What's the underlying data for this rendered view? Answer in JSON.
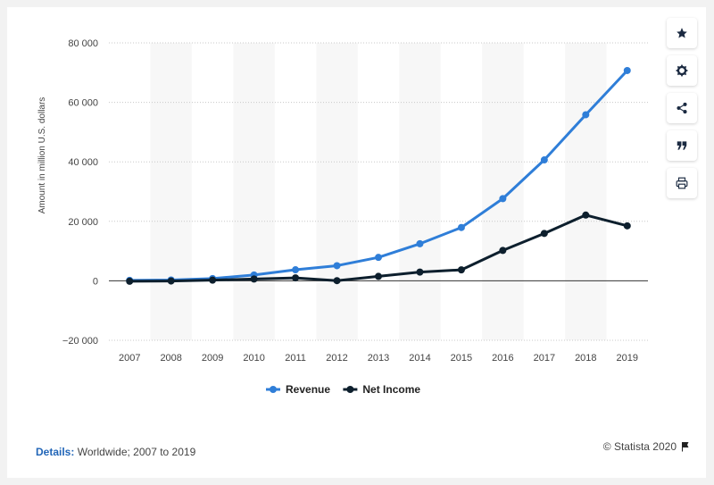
{
  "toolbar": {
    "star_icon": "star-icon",
    "settings_icon": "gear-icon",
    "share_icon": "share-icon",
    "cite_icon": "quote-icon",
    "print_icon": "print-icon"
  },
  "footer": {
    "details_label": "Details:",
    "details_text": "Worldwide; 2007 to 2019",
    "credit": "© Statista 2020"
  },
  "colors": {
    "revenue": "#2f7ed8",
    "net_income": "#0d1f2d",
    "band": "#f7f7f7",
    "grid": "#c8c8c8"
  },
  "chart_data": {
    "type": "line",
    "title": "",
    "xlabel": "",
    "ylabel": "Amount in million U.S. dollars",
    "ylim": [
      -20000,
      80000
    ],
    "y_ticks": [
      -20000,
      0,
      20000,
      40000,
      60000,
      80000
    ],
    "y_tick_labels": [
      "−20 000",
      "0",
      "20 000",
      "40 000",
      "60 000",
      "80 000"
    ],
    "categories": [
      "2007",
      "2008",
      "2009",
      "2010",
      "2011",
      "2012",
      "2013",
      "2014",
      "2015",
      "2016",
      "2017",
      "2018",
      "2019"
    ],
    "series": [
      {
        "name": "Revenue",
        "values": [
          153,
          272,
          777,
          1974,
          3711,
          5089,
          7872,
          12466,
          17928,
          27638,
          40653,
          55838,
          70697
        ]
      },
      {
        "name": "Net Income",
        "values": [
          -138,
          -56,
          229,
          606,
          1000,
          53,
          1500,
          2940,
          3688,
          10217,
          15934,
          22112,
          18485
        ]
      }
    ],
    "legend_position": "bottom-center",
    "grid": true
  }
}
